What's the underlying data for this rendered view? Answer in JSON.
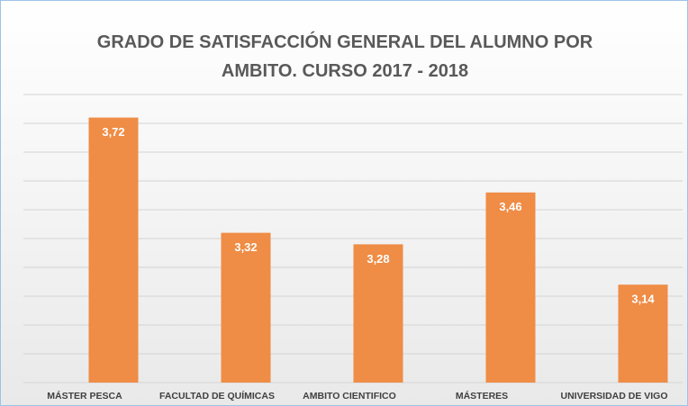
{
  "chart_data": {
    "type": "bar",
    "title": "GRADO DE SATISFACCIÓN GENERAL DEL ALUMNO POR AMBITO. CURSO 2017 - 2018",
    "categories": [
      "MÁSTER PESCA",
      "FACULTAD DE QUÍMICAS",
      "AMBITO CIENTIFICO",
      "MÁSTERES",
      "UNIVERSIDAD DE VIGO"
    ],
    "values": [
      3.72,
      3.32,
      3.28,
      3.46,
      3.14
    ],
    "value_labels": [
      "3,72",
      "3,32",
      "3,28",
      "3,46",
      "3,14"
    ],
    "color": "#ef8c45",
    "ylim": [
      2.8,
      3.8
    ],
    "yticks": [
      2.8,
      2.9,
      3.0,
      3.1,
      3.2,
      3.3,
      3.4,
      3.5,
      3.6,
      3.7,
      3.8
    ],
    "grid": true
  }
}
